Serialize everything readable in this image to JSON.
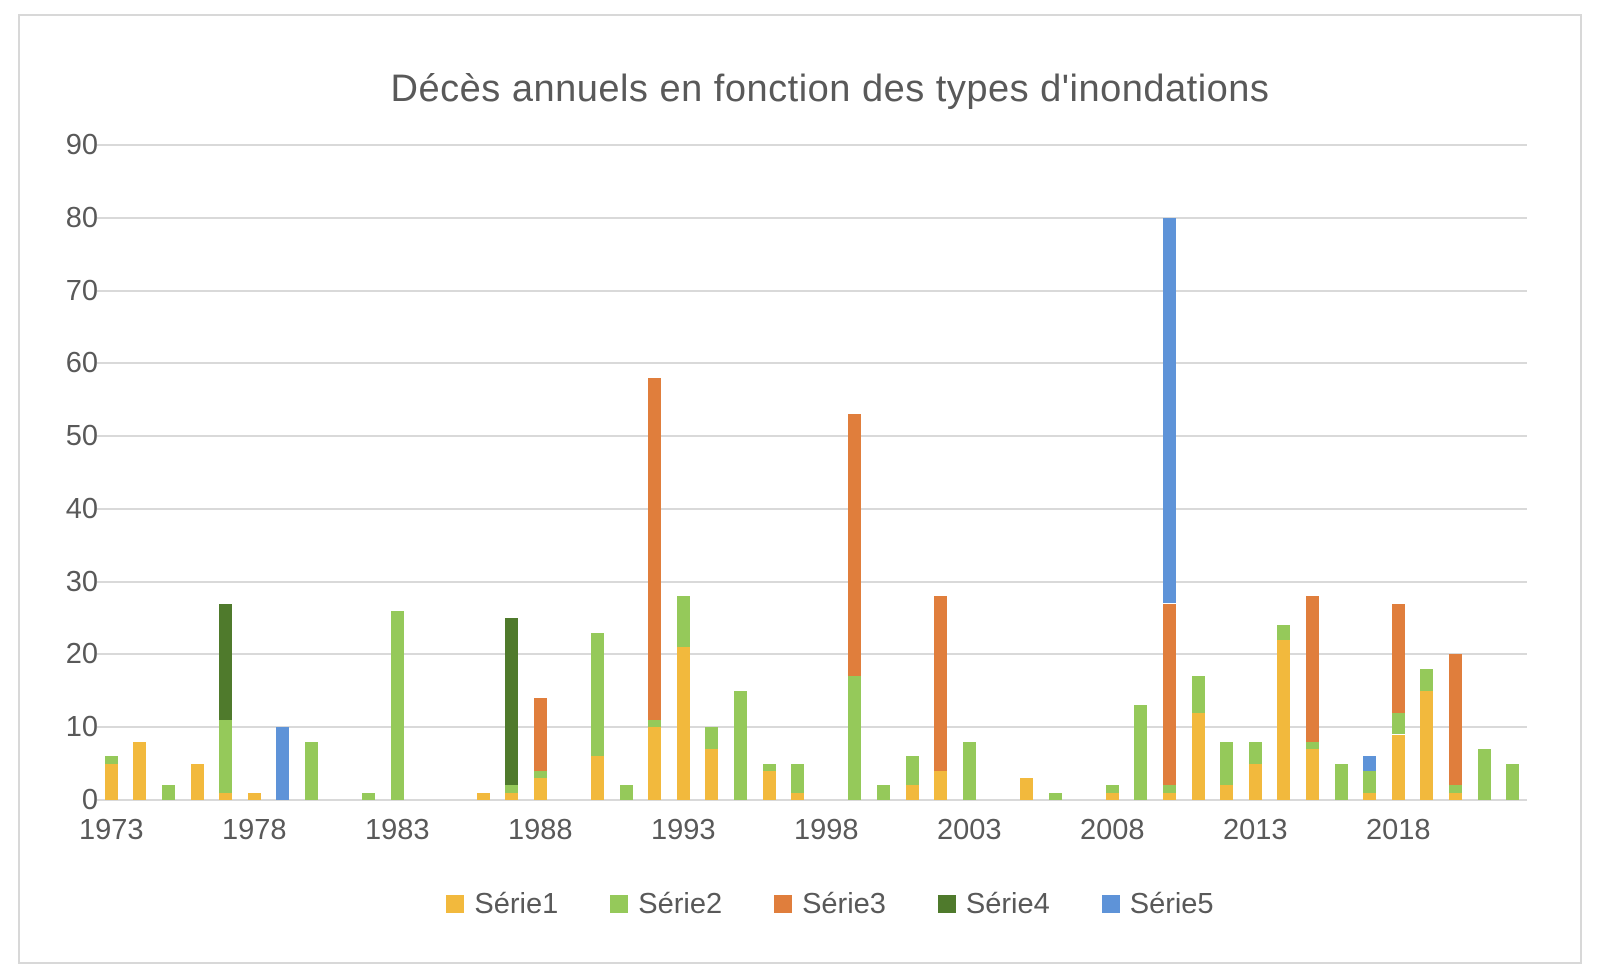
{
  "frame": {
    "background": "#ffffff",
    "border_color": "#d8d8d8",
    "text_color": "#595959",
    "gridline_color": "#d9d9d9"
  },
  "chart_data": {
    "type": "bar",
    "stacked": true,
    "title": "Décès annuels en fonction des types d'inondations",
    "grid": true,
    "legend_position": "bottom",
    "ylim": [
      0,
      90
    ],
    "ytick_step": 10,
    "yticks": [
      "0",
      "10",
      "20",
      "30",
      "40",
      "50",
      "60",
      "70",
      "80",
      "90"
    ],
    "xticks": [
      "1973",
      "1978",
      "1983",
      "1988",
      "1993",
      "1998",
      "2003",
      "2008",
      "2013",
      "2018"
    ],
    "years": [
      1973,
      1974,
      1975,
      1976,
      1977,
      1978,
      1979,
      1980,
      1981,
      1982,
      1983,
      1984,
      1985,
      1986,
      1987,
      1988,
      1989,
      1990,
      1991,
      1992,
      1993,
      1994,
      1995,
      1996,
      1997,
      1998,
      1999,
      2000,
      2001,
      2002,
      2003,
      2004,
      2005,
      2006,
      2007,
      2008,
      2009,
      2010,
      2011,
      2012,
      2013,
      2014,
      2015,
      2016,
      2017,
      2018,
      2019,
      2020,
      2021,
      2022
    ],
    "series": [
      {
        "name": "Série1",
        "color": "#F2B93D",
        "values": [
          5,
          8,
          0,
          5,
          1,
          1,
          0,
          0,
          0,
          0,
          0,
          0,
          0,
          1,
          1,
          3,
          0,
          6,
          0,
          10,
          21,
          7,
          0,
          4,
          1,
          0,
          0,
          0,
          2,
          4,
          0,
          0,
          3,
          0,
          0,
          1,
          0,
          1,
          12,
          2,
          5,
          22,
          7,
          0,
          1,
          9,
          15,
          1,
          0,
          0
        ]
      },
      {
        "name": "Série2",
        "color": "#95C95A",
        "values": [
          1,
          0,
          2,
          0,
          10,
          0,
          0,
          8,
          0,
          1,
          26,
          0,
          0,
          0,
          1,
          1,
          0,
          17,
          2,
          1,
          7,
          3,
          15,
          1,
          4,
          0,
          17,
          2,
          4,
          0,
          8,
          0,
          0,
          1,
          0,
          1,
          13,
          1,
          5,
          6,
          3,
          2,
          1,
          5,
          3,
          3,
          3,
          1,
          7,
          5
        ]
      },
      {
        "name": "Série3",
        "color": "#E07E3C",
        "values": [
          0,
          0,
          0,
          0,
          0,
          0,
          0,
          0,
          0,
          0,
          0,
          0,
          0,
          0,
          0,
          10,
          0,
          0,
          0,
          47,
          0,
          0,
          0,
          0,
          0,
          0,
          36,
          0,
          0,
          24,
          0,
          0,
          0,
          0,
          0,
          0,
          0,
          25,
          0,
          0,
          0,
          0,
          20,
          0,
          0,
          15,
          0,
          18,
          0,
          0
        ]
      },
      {
        "name": "Série4",
        "color": "#4F7A2C",
        "values": [
          0,
          0,
          0,
          0,
          16,
          0,
          0,
          0,
          0,
          0,
          0,
          0,
          0,
          0,
          23,
          0,
          0,
          0,
          0,
          0,
          0,
          0,
          0,
          0,
          0,
          0,
          0,
          0,
          0,
          0,
          0,
          0,
          0,
          0,
          0,
          0,
          0,
          0,
          0,
          0,
          0,
          0,
          0,
          0,
          0,
          0,
          0,
          0,
          0,
          0
        ]
      },
      {
        "name": "Série5",
        "color": "#5E93D8",
        "values": [
          0,
          0,
          0,
          0,
          0,
          0,
          10,
          0,
          0,
          0,
          0,
          0,
          0,
          0,
          0,
          0,
          0,
          0,
          0,
          0,
          0,
          0,
          0,
          0,
          0,
          0,
          0,
          0,
          0,
          0,
          0,
          0,
          0,
          0,
          0,
          0,
          0,
          53,
          0,
          0,
          0,
          0,
          0,
          0,
          2,
          0,
          0,
          0,
          0,
          0
        ]
      }
    ]
  }
}
